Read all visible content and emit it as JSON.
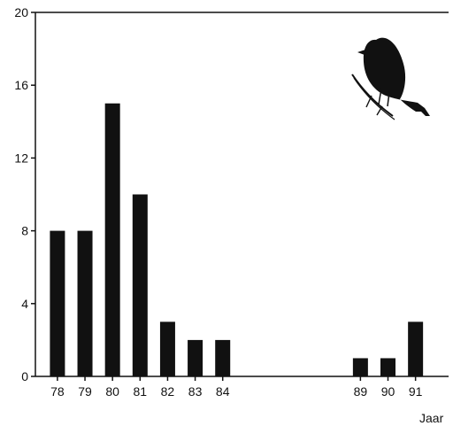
{
  "chart_data": {
    "type": "bar",
    "categories": [
      "78",
      "79",
      "80",
      "81",
      "82",
      "83",
      "84",
      "89",
      "90",
      "91"
    ],
    "x": [
      78,
      79,
      80,
      81,
      82,
      83,
      84,
      89,
      90,
      91
    ],
    "values": [
      8,
      8,
      15,
      10,
      3,
      2,
      2,
      1,
      1,
      3
    ],
    "xlabel": "Jaar",
    "ylabel": "",
    "ylim": [
      0,
      20
    ],
    "yticks": [
      0,
      4,
      8,
      12,
      16,
      20
    ],
    "xlim": [
      77.2,
      92.2
    ],
    "grid": false,
    "bar_color": "#111111",
    "icon": "bird-silhouette-icon"
  }
}
